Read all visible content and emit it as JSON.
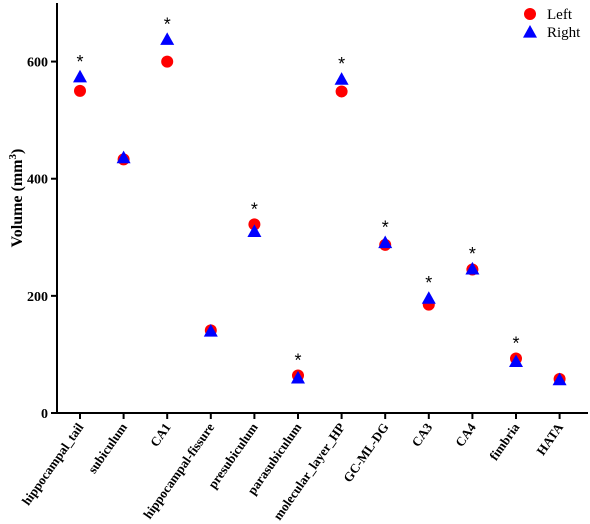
{
  "chart_data": {
    "type": "scatter",
    "ylabel": "Volume (mm",
    "ylabel_sup": "3",
    "ylabel_close": ")",
    "ylim": [
      0,
      700
    ],
    "yticks": [
      0,
      200,
      400,
      600
    ],
    "legend_position": "top-right",
    "categories": [
      "hippocampal_tail",
      "subiculum",
      "CA1",
      "hippocampal-fissure",
      "presubiculum",
      "parasubiculum",
      "molecular_layer_HP",
      "GC-ML-DG",
      "CA3",
      "CA4",
      "fimbria",
      "HATA"
    ],
    "series": [
      {
        "name": "Left",
        "marker": "circle",
        "color": "#ff0000",
        "values": [
          550,
          433,
          600,
          141,
          322,
          64,
          549,
          287,
          185,
          245,
          93,
          58
        ]
      },
      {
        "name": "Right",
        "marker": "triangle",
        "color": "#0000ff",
        "values": [
          574,
          436,
          638,
          140,
          310,
          60,
          570,
          291,
          196,
          246,
          88,
          57
        ]
      }
    ],
    "significance": {
      "symbol": "*",
      "flags": [
        true,
        false,
        true,
        false,
        true,
        true,
        true,
        true,
        true,
        true,
        true,
        false
      ]
    }
  }
}
